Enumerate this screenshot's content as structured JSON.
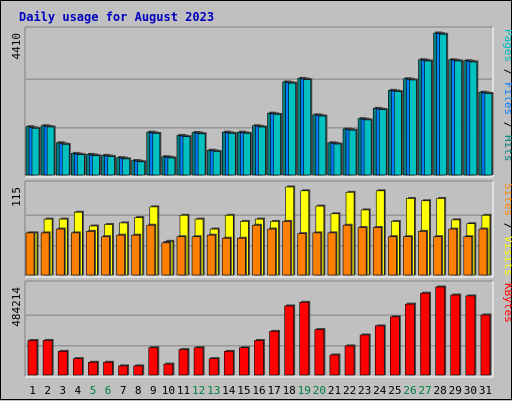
{
  "title": "Daily usage for August 2023",
  "colors": {
    "background": "#c0c0c0",
    "panel": "#c0c0c0",
    "title": "#0000c0",
    "pages": "#00c0c0",
    "files": "#0080ff",
    "hits": "#008080",
    "sites": "#ff8000",
    "visits": "#ffff00",
    "kbytes": "#ff0000",
    "weekend_day": "#008040",
    "weekday": "#000000"
  },
  "chart_data": [
    {
      "type": "bar",
      "name": "hits-files-pages",
      "ymax_label": "4410",
      "ylim": [
        0,
        4410
      ],
      "legend": [
        "Pages",
        "Files",
        "Hits"
      ],
      "legend_separator": " / ",
      "categories": [
        "1",
        "2",
        "3",
        "4",
        "5",
        "6",
        "7",
        "8",
        "9",
        "10",
        "11",
        "12",
        "13",
        "14",
        "15",
        "16",
        "17",
        "18",
        "19",
        "20",
        "21",
        "22",
        "23",
        "24",
        "25",
        "26",
        "27",
        "28",
        "29",
        "30",
        "31"
      ],
      "series": [
        {
          "name": "Hits",
          "values": [
            1500,
            1530,
            1000,
            670,
            640,
            610,
            540,
            450,
            1330,
            570,
            1230,
            1320,
            770,
            1330,
            1330,
            1530,
            1920,
            2890,
            3000,
            1870,
            1000,
            1430,
            1750,
            2070,
            2630,
            2990,
            3580,
            4410,
            3580,
            3550,
            2570
          ]
        },
        {
          "name": "Files",
          "values": [
            1470,
            1510,
            970,
            650,
            620,
            590,
            520,
            430,
            1310,
            550,
            1210,
            1300,
            750,
            1310,
            1310,
            1510,
            1900,
            2870,
            2980,
            1850,
            980,
            1410,
            1730,
            2050,
            2610,
            2970,
            3560,
            4390,
            3560,
            3530,
            2550
          ]
        },
        {
          "name": "Pages",
          "values": [
            1450,
            1490,
            950,
            630,
            600,
            570,
            500,
            410,
            1290,
            530,
            1190,
            1280,
            730,
            1290,
            1290,
            1490,
            1880,
            2850,
            2960,
            1830,
            960,
            1390,
            1710,
            2030,
            2590,
            2950,
            3540,
            4370,
            3540,
            3510,
            2530
          ]
        }
      ]
    },
    {
      "type": "bar",
      "name": "visits-sites",
      "ymax_label": "115",
      "ylim": [
        0,
        115
      ],
      "legend": [
        "Sites",
        "Visits"
      ],
      "legend_separator": " / ",
      "categories": [
        "1",
        "2",
        "3",
        "4",
        "5",
        "6",
        "7",
        "8",
        "9",
        "10",
        "11",
        "12",
        "13",
        "14",
        "15",
        "16",
        "17",
        "18",
        "19",
        "20",
        "21",
        "22",
        "23",
        "24",
        "25",
        "26",
        "27",
        "28",
        "29",
        "30",
        "31"
      ],
      "series": [
        {
          "name": "Visits",
          "values": [
            55,
            73,
            73,
            82,
            64,
            66,
            68,
            75,
            89,
            44,
            78,
            73,
            60,
            78,
            70,
            73,
            70,
            115,
            110,
            90,
            80,
            108,
            85,
            110,
            70,
            100,
            97,
            100,
            72,
            67,
            78
          ]
        },
        {
          "name": "Sites",
          "values": [
            55,
            55,
            60,
            55,
            57,
            50,
            52,
            52,
            65,
            42,
            50,
            50,
            52,
            48,
            48,
            65,
            60,
            70,
            54,
            55,
            55,
            65,
            62,
            62,
            50,
            50,
            57,
            50,
            60,
            50,
            60
          ]
        }
      ]
    },
    {
      "type": "bar",
      "name": "kbytes",
      "ymax_label": "484214",
      "ylim": [
        0,
        484214
      ],
      "legend": [
        "KBytes"
      ],
      "categories": [
        "1",
        "2",
        "3",
        "4",
        "5",
        "6",
        "7",
        "8",
        "9",
        "10",
        "11",
        "12",
        "13",
        "14",
        "15",
        "16",
        "17",
        "18",
        "19",
        "20",
        "21",
        "22",
        "23",
        "24",
        "25",
        "26",
        "27",
        "28",
        "29",
        "30",
        "31"
      ],
      "series": [
        {
          "name": "KBytes",
          "values": [
            190000,
            190000,
            130000,
            90000,
            70000,
            70000,
            50000,
            50000,
            150000,
            60000,
            140000,
            150000,
            90000,
            130000,
            150000,
            190000,
            240000,
            380000,
            400000,
            250000,
            110000,
            160000,
            220000,
            270000,
            320000,
            390000,
            450000,
            484214,
            440000,
            435000,
            330000
          ]
        }
      ]
    }
  ],
  "weekend_days": [
    5,
    6,
    12,
    13,
    19,
    20,
    26,
    27
  ]
}
